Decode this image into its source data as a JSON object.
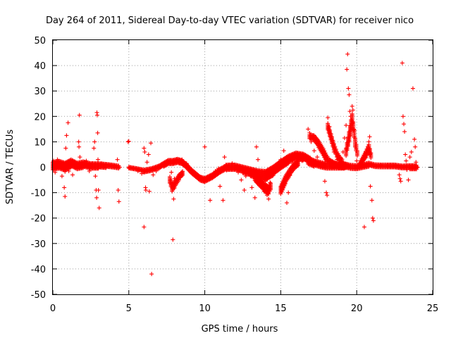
{
  "chart_data": {
    "type": "scatter",
    "title": "Day 264 of 2011, Sidereal Day-to-day VTEC variation (SDTVAR) for receiver nico",
    "xlabel": "GPS time / hours",
    "ylabel": "SDTVAR / TECUs",
    "xlim": [
      0,
      25
    ],
    "ylim": [
      -50,
      50
    ],
    "xticks": [
      "0",
      "5",
      "10",
      "15",
      "20",
      "25"
    ],
    "yticks": [
      "-50",
      "-40",
      "-30",
      "-20",
      "-10",
      "0",
      "10",
      "20",
      "30",
      "40",
      "50"
    ],
    "grid": true,
    "marker": "plus",
    "series": [
      {
        "name": "SDTVAR",
        "color": "#ff0000",
        "points": [
          [
            0.05,
            2.5
          ],
          [
            0.15,
            -2.0
          ],
          [
            0.3,
            3.0
          ],
          [
            0.45,
            1.0
          ],
          [
            0.6,
            -3.5
          ],
          [
            0.75,
            -8.0
          ],
          [
            0.8,
            -11.5
          ],
          [
            0.85,
            7.5
          ],
          [
            0.9,
            12.5
          ],
          [
            0.95,
            0.5
          ],
          [
            1.0,
            17.5
          ],
          [
            1.05,
            -1.5
          ],
          [
            1.2,
            2.0
          ],
          [
            1.3,
            -3.0
          ],
          [
            1.5,
            1.5
          ],
          [
            1.75,
            20.5
          ],
          [
            1.7,
            10.0
          ],
          [
            1.72,
            8.0
          ],
          [
            1.78,
            4.0
          ],
          [
            1.85,
            1.0
          ],
          [
            2.0,
            0.5
          ],
          [
            2.2,
            2.5
          ],
          [
            2.4,
            -1.5
          ],
          [
            2.6,
            1.5
          ],
          [
            2.7,
            7.5
          ],
          [
            2.75,
            10.0
          ],
          [
            2.8,
            -3.5
          ],
          [
            2.85,
            -9.0
          ],
          [
            2.88,
            -12.0
          ],
          [
            2.9,
            21.5
          ],
          [
            2.92,
            20.5
          ],
          [
            2.95,
            13.5
          ],
          [
            2.97,
            3.0
          ],
          [
            3.0,
            -9.0
          ],
          [
            3.05,
            -16.0
          ],
          [
            3.2,
            1.5
          ],
          [
            3.5,
            1.0
          ],
          [
            3.8,
            0.8
          ],
          [
            4.1,
            0.5
          ],
          [
            4.25,
            3.0
          ],
          [
            4.3,
            -9.0
          ],
          [
            4.35,
            -13.5
          ],
          [
            4.4,
            0.0
          ],
          [
            4.95,
            10.0
          ],
          [
            5.0,
            10.2
          ],
          [
            5.05,
            -0.3
          ],
          [
            5.3,
            -0.5
          ],
          [
            5.6,
            -1.5
          ],
          [
            5.85,
            -2.5
          ],
          [
            6.0,
            7.5
          ],
          [
            6.05,
            6.0
          ],
          [
            6.1,
            -8.0
          ],
          [
            6.12,
            -9.0
          ],
          [
            6.0,
            -23.5
          ],
          [
            6.2,
            2.0
          ],
          [
            6.3,
            5.0
          ],
          [
            6.35,
            -9.5
          ],
          [
            6.45,
            9.5
          ],
          [
            6.5,
            -42.0
          ],
          [
            6.6,
            -3.0
          ],
          [
            6.8,
            -1.5
          ],
          [
            7.0,
            -0.5
          ],
          [
            7.2,
            1.0
          ],
          [
            7.5,
            2.2
          ],
          [
            7.8,
            -2.0
          ],
          [
            7.9,
            -8.0
          ],
          [
            7.95,
            -12.5
          ],
          [
            7.9,
            -28.5
          ],
          [
            8.0,
            -4.5
          ],
          [
            8.2,
            2.5
          ],
          [
            8.5,
            3.0
          ],
          [
            8.8,
            1.5
          ],
          [
            9.1,
            -1.0
          ],
          [
            9.3,
            -2.5
          ],
          [
            9.6,
            -4.5
          ],
          [
            9.9,
            -5.5
          ],
          [
            10.0,
            8.0
          ],
          [
            10.1,
            -5.0
          ],
          [
            10.3,
            -4.0
          ],
          [
            10.35,
            -13.0
          ],
          [
            10.5,
            -3.0
          ],
          [
            10.7,
            -1.5
          ],
          [
            10.9,
            -0.5
          ],
          [
            11.0,
            -7.5
          ],
          [
            11.2,
            -13.0
          ],
          [
            11.3,
            4.0
          ],
          [
            11.4,
            1.0
          ],
          [
            11.6,
            0.5
          ],
          [
            11.8,
            1.5
          ],
          [
            12.0,
            -0.5
          ],
          [
            12.2,
            -2.0
          ],
          [
            12.4,
            -5.0
          ],
          [
            12.6,
            -9.0
          ],
          [
            12.7,
            -3.5
          ],
          [
            12.9,
            -2.5
          ],
          [
            13.1,
            -8.0
          ],
          [
            13.3,
            -12.0
          ],
          [
            13.4,
            8.0
          ],
          [
            13.5,
            3.0
          ],
          [
            13.6,
            -4.0
          ],
          [
            13.8,
            -7.0
          ],
          [
            14.0,
            -9.5
          ],
          [
            14.1,
            -11.0
          ],
          [
            14.2,
            -12.5
          ],
          [
            14.3,
            -6.0
          ],
          [
            14.5,
            -2.0
          ],
          [
            14.7,
            0.5
          ],
          [
            15.0,
            3.0
          ],
          [
            15.1,
            -6.5
          ],
          [
            15.2,
            6.5
          ],
          [
            15.4,
            -14.0
          ],
          [
            15.5,
            -10.0
          ],
          [
            15.6,
            -3.0
          ],
          [
            15.8,
            1.5
          ],
          [
            16.0,
            3.5
          ],
          [
            16.2,
            4.0
          ],
          [
            16.4,
            2.5
          ],
          [
            16.6,
            3.0
          ],
          [
            16.8,
            15.0
          ],
          [
            16.9,
            13.5
          ],
          [
            17.0,
            10.0
          ],
          [
            17.2,
            6.5
          ],
          [
            17.4,
            4.0
          ],
          [
            17.6,
            2.0
          ],
          [
            17.9,
            -5.5
          ],
          [
            18.0,
            -10.0
          ],
          [
            18.05,
            -11.0
          ],
          [
            18.1,
            19.5
          ],
          [
            18.2,
            16.0
          ],
          [
            18.3,
            12.0
          ],
          [
            18.5,
            6.0
          ],
          [
            18.7,
            3.0
          ],
          [
            18.9,
            1.0
          ],
          [
            19.0,
            2.5
          ],
          [
            19.1,
            6.0
          ],
          [
            19.2,
            11.5
          ],
          [
            19.3,
            16.5
          ],
          [
            19.35,
            38.5
          ],
          [
            19.4,
            44.5
          ],
          [
            19.45,
            31.0
          ],
          [
            19.5,
            28.5
          ],
          [
            19.55,
            22.0
          ],
          [
            19.6,
            20.0
          ],
          [
            19.7,
            24.0
          ],
          [
            19.75,
            22.5
          ],
          [
            19.8,
            15.0
          ],
          [
            19.9,
            8.0
          ],
          [
            20.0,
            2.5
          ],
          [
            20.2,
            1.0
          ],
          [
            20.4,
            3.5
          ],
          [
            20.5,
            -23.5
          ],
          [
            20.6,
            6.0
          ],
          [
            20.8,
            10.0
          ],
          [
            20.85,
            12.0
          ],
          [
            20.9,
            -7.5
          ],
          [
            21.0,
            -13.0
          ],
          [
            21.05,
            -20.0
          ],
          [
            21.1,
            -21.0
          ],
          [
            21.3,
            0.5
          ],
          [
            21.6,
            0.8
          ],
          [
            22.0,
            0.5
          ],
          [
            22.5,
            0.6
          ],
          [
            22.8,
            -3.0
          ],
          [
            22.85,
            -4.5
          ],
          [
            22.9,
            -5.5
          ],
          [
            23.0,
            41.0
          ],
          [
            23.05,
            20.0
          ],
          [
            23.1,
            17.0
          ],
          [
            23.15,
            14.0
          ],
          [
            23.2,
            5.0
          ],
          [
            23.25,
            2.5
          ],
          [
            23.3,
            -1.0
          ],
          [
            23.4,
            -5.0
          ],
          [
            23.5,
            4.0
          ],
          [
            23.6,
            6.0
          ],
          [
            23.7,
            31.0
          ],
          [
            23.8,
            11.0
          ],
          [
            23.85,
            8.0
          ],
          [
            23.9,
            2.0
          ],
          [
            24.0,
            0.0
          ]
        ],
        "bands": [
          {
            "x": [
              0.0,
              0.4,
              0.8,
              1.2,
              1.6,
              2.0,
              2.5,
              3.0,
              3.5,
              4.0,
              4.4
            ],
            "center": [
              0.5,
              1.0,
              0.0,
              1.5,
              0.5,
              1.0,
              0.5,
              0.5,
              0.5,
              0.3,
              0.0
            ],
            "spread": [
              3.0,
              3.0,
              3.5,
              3.0,
              2.5,
              2.5,
              2.0,
              2.0,
              1.5,
              1.2,
              1.0
            ]
          },
          {
            "x": [
              5.0,
              5.5,
              6.0,
              6.5,
              7.0,
              7.3,
              7.6,
              7.9,
              8.2,
              8.5,
              8.8,
              9.1,
              9.4,
              9.7,
              10.0
            ],
            "center": [
              -0.3,
              -0.8,
              -1.5,
              -1.0,
              0.0,
              1.0,
              2.0,
              2.0,
              2.5,
              2.0,
              0.5,
              -1.5,
              -3.0,
              -4.5,
              -5.0
            ],
            "spread": [
              0.8,
              0.8,
              1.0,
              1.2,
              1.3,
              1.5,
              1.6,
              1.6,
              1.5,
              1.5,
              1.5,
              1.5,
              1.5,
              1.5,
              1.5
            ]
          },
          {
            "x": [
              7.7,
              7.85,
              8.0,
              8.3,
              8.6
            ],
            "center": [
              -5.0,
              -8.0,
              -7.0,
              -4.0,
              -2.0
            ],
            "spread": [
              2.5,
              3.0,
              2.5,
              2.0,
              1.5
            ]
          },
          {
            "x": [
              10.0,
              10.5,
              11.0,
              11.5,
              12.0,
              12.5,
              13.0,
              13.5,
              14.0,
              14.5,
              15.0,
              15.5,
              16.0,
              16.5,
              17.0
            ],
            "center": [
              -5.0,
              -3.5,
              -1.5,
              0.0,
              0.0,
              -1.0,
              -2.0,
              -3.0,
              -3.5,
              -1.5,
              1.0,
              3.0,
              4.5,
              4.0,
              2.5
            ],
            "spread": [
              1.5,
              1.5,
              1.8,
              2.0,
              2.0,
              2.5,
              3.0,
              3.5,
              4.0,
              3.5,
              3.0,
              3.0,
              2.5,
              2.5,
              2.0
            ]
          },
          {
            "x": [
              13.3,
              13.6,
              13.9,
              14.2,
              14.4
            ],
            "center": [
              -4.0,
              -6.0,
              -8.0,
              -9.0,
              -7.0
            ],
            "spread": [
              2.5,
              2.5,
              3.0,
              3.0,
              2.5
            ]
          },
          {
            "x": [
              15.0,
              15.3,
              15.6,
              15.9,
              16.2
            ],
            "center": [
              -9.0,
              -5.0,
              -2.0,
              0.5,
              2.0
            ],
            "spread": [
              3.0,
              3.0,
              2.5,
              2.0,
              2.0
            ]
          },
          {
            "x": [
              16.9,
              17.2,
              17.5,
              17.8,
              18.0,
              18.2,
              18.5,
              18.8,
              19.1,
              19.4
            ],
            "center": [
              12.0,
              11.5,
              9.0,
              6.0,
              3.5,
              2.0,
              1.0,
              0.5,
              0.5,
              0.5
            ],
            "spread": [
              1.5,
              2.0,
              2.5,
              2.5,
              2.5,
              2.0,
              2.0,
              1.5,
              1.5,
              1.5
            ]
          },
          {
            "x": [
              16.8,
              17.2,
              17.6,
              18.0,
              18.4,
              18.8,
              19.2,
              19.6,
              20.0,
              20.4,
              20.8,
              21.2,
              21.6,
              22.0,
              22.5,
              23.0,
              23.5,
              24.0
            ],
            "center": [
              2.5,
              1.5,
              1.0,
              0.5,
              0.5,
              0.5,
              0.5,
              0.0,
              0.0,
              0.5,
              1.0,
              0.5,
              0.5,
              0.5,
              0.5,
              0.0,
              0.0,
              0.0
            ],
            "spread": [
              2.5,
              2.5,
              2.0,
              2.0,
              2.0,
              2.0,
              2.0,
              1.8,
              1.5,
              1.5,
              1.5,
              1.2,
              1.0,
              1.0,
              1.0,
              1.2,
              1.5,
              1.5
            ]
          },
          {
            "x": [
              18.1,
              18.3,
              18.5,
              18.7,
              18.9,
              19.1
            ],
            "center": [
              16.0,
              12.0,
              8.0,
              5.0,
              3.0,
              2.0
            ],
            "spread": [
              2.5,
              2.5,
              2.5,
              2.0,
              2.0,
              1.5
            ]
          },
          {
            "x": [
              19.3,
              19.5,
              19.7,
              19.9,
              20.1
            ],
            "center": [
              6.0,
              12.0,
              19.0,
              10.0,
              3.0
            ],
            "spread": [
              3.0,
              4.0,
              4.0,
              3.0,
              2.0
            ]
          },
          {
            "x": [
              20.2,
              20.4,
              20.6,
              20.8,
              21.0
            ],
            "center": [
              1.0,
              3.0,
              5.0,
              7.5,
              3.0
            ],
            "spread": [
              1.5,
              2.0,
              2.5,
              3.0,
              2.0
            ]
          }
        ]
      }
    ]
  }
}
